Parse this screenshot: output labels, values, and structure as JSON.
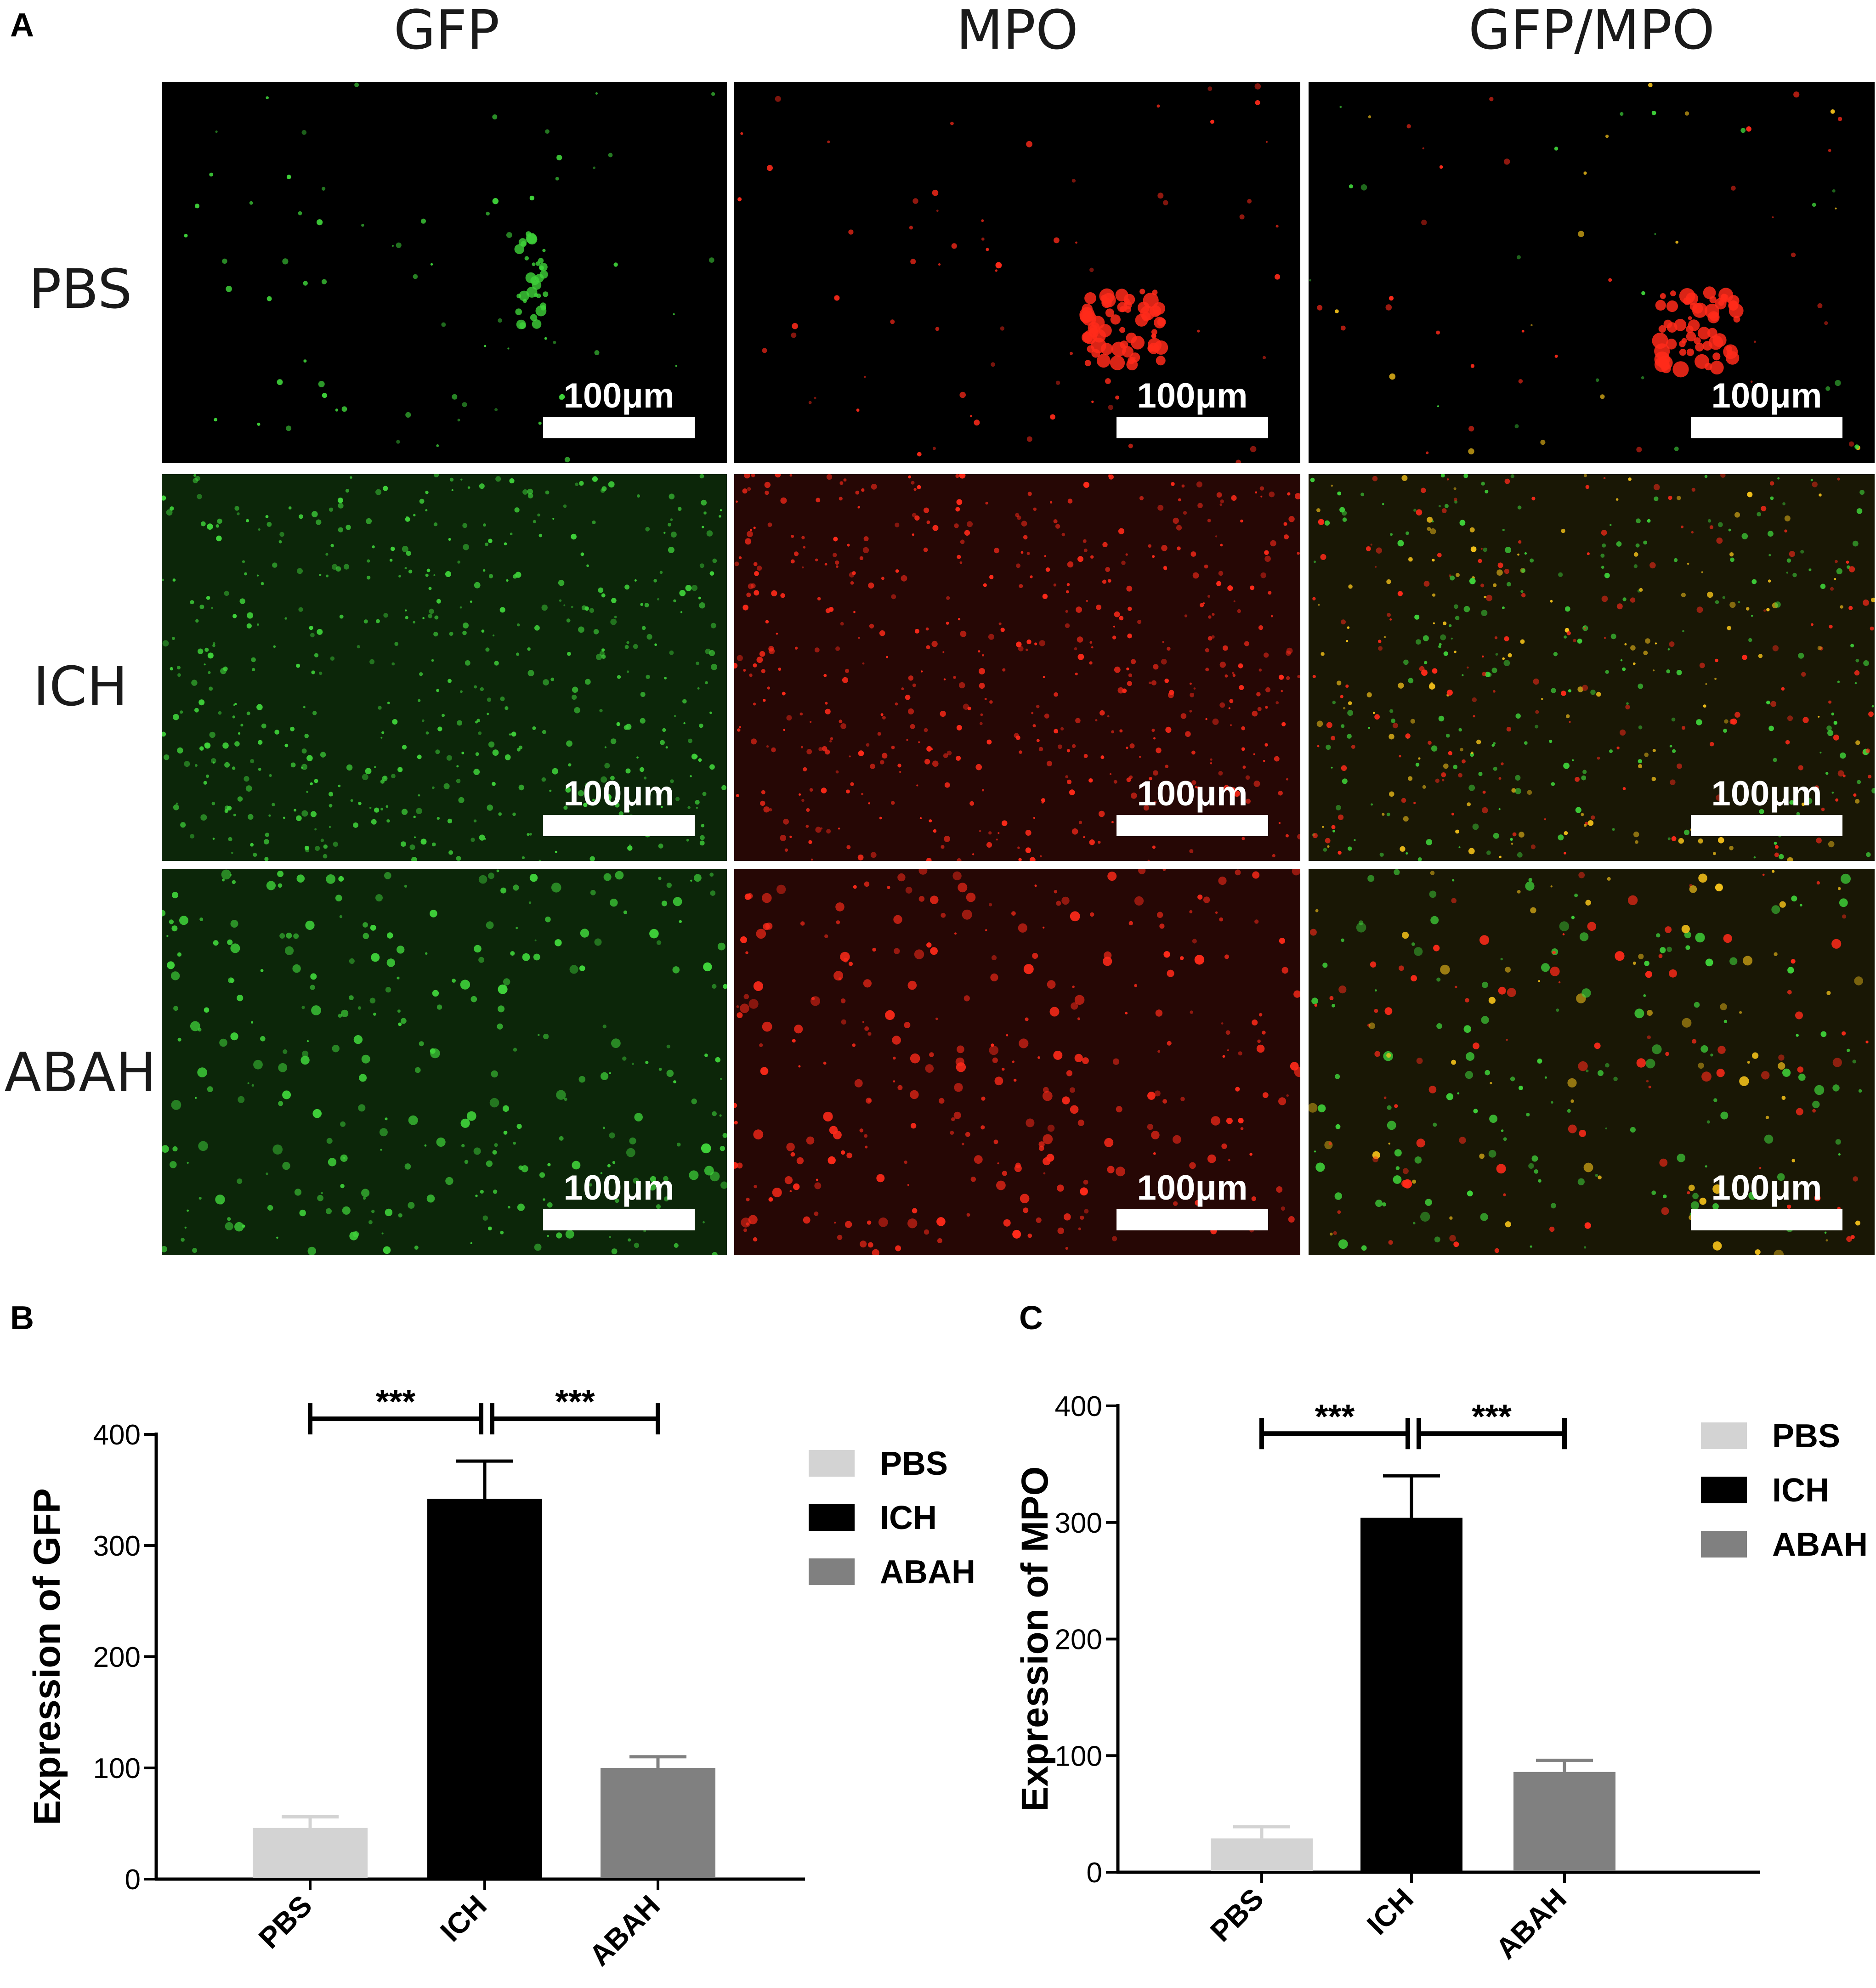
{
  "panels": {
    "a": "A",
    "b": "B",
    "c": "C"
  },
  "image_grid": {
    "columns": [
      "GFP",
      "MPO",
      "GFP/MPO"
    ],
    "rows": [
      "PBS",
      "ICH",
      "ABAH"
    ],
    "scale_bar_label": "100μm",
    "channel_colors": {
      "gfp": "#3fd23a",
      "mpo": "#ff2a1a",
      "merge": "#f2c01a"
    }
  },
  "chart_data": [
    {
      "type": "bar",
      "panel": "B",
      "categories": [
        "PBS",
        "ICH",
        "ABAH"
      ],
      "values": [
        46,
        342,
        100
      ],
      "errors": [
        10,
        34,
        10
      ],
      "colors": [
        "#d3d3d3",
        "#000000",
        "#808080"
      ],
      "ylabel": "Expression of GFP",
      "ylim": [
        0,
        400
      ],
      "yticks": [
        0,
        100,
        200,
        300,
        400
      ],
      "legend": [
        "PBS",
        "ICH",
        "ABAH"
      ],
      "legend_position": "right",
      "significance": [
        {
          "from": "PBS",
          "to": "ICH",
          "label": "***"
        },
        {
          "from": "ICH",
          "to": "ABAH",
          "label": "***"
        }
      ]
    },
    {
      "type": "bar",
      "panel": "C",
      "categories": [
        "PBS",
        "ICH",
        "ABAH"
      ],
      "values": [
        29,
        304,
        86
      ],
      "errors": [
        10,
        36,
        10
      ],
      "colors": [
        "#d3d3d3",
        "#000000",
        "#808080"
      ],
      "ylabel": "Expression of MPO",
      "ylim": [
        0,
        400
      ],
      "yticks": [
        0,
        100,
        200,
        300,
        400
      ],
      "legend": [
        "PBS",
        "ICH",
        "ABAH"
      ],
      "legend_position": "right",
      "significance": [
        {
          "from": "PBS",
          "to": "ICH",
          "label": "***"
        },
        {
          "from": "ICH",
          "to": "ABAH",
          "label": "***"
        }
      ]
    }
  ]
}
